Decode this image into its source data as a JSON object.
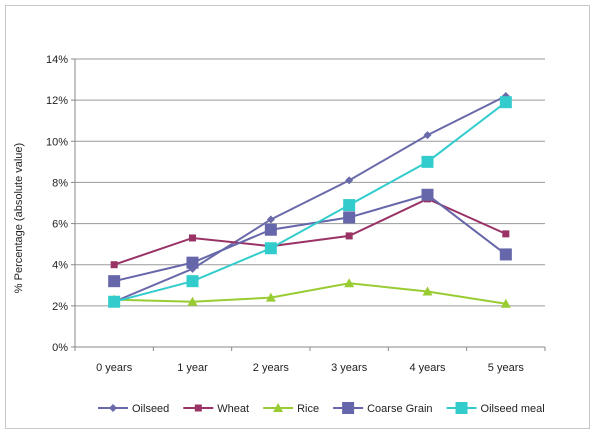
{
  "chart_data": {
    "type": "line",
    "title": "",
    "xlabel": "",
    "ylabel": "% Percentage (absolute value)",
    "categories": [
      "0 years",
      "1 year",
      "2 years",
      "3 years",
      "4 years",
      "5 years"
    ],
    "ylim": [
      0,
      14
    ],
    "yticks": [
      0,
      2,
      4,
      6,
      8,
      10,
      12,
      14
    ],
    "ytick_labels": [
      "0%",
      "2%",
      "4%",
      "6%",
      "8%",
      "10%",
      "12%",
      "14%"
    ],
    "grid": "horizontal",
    "legend_position": "bottom",
    "series": [
      {
        "name": "Oilseed",
        "color": "#6a6aaa",
        "marker": "diamond",
        "values": [
          2.2,
          3.8,
          6.2,
          8.1,
          10.3,
          12.2
        ]
      },
      {
        "name": "Wheat",
        "color": "#993366",
        "marker": "square",
        "values": [
          4.0,
          5.3,
          4.9,
          5.4,
          7.2,
          5.5
        ]
      },
      {
        "name": "Rice",
        "color": "#99cc33",
        "marker": "triangle",
        "values": [
          2.3,
          2.2,
          2.4,
          3.1,
          2.7,
          2.1
        ]
      },
      {
        "name": "Coarse Grain",
        "color": "#6666aa",
        "marker": "square-large",
        "values": [
          3.2,
          4.1,
          5.7,
          6.3,
          7.4,
          4.5
        ]
      },
      {
        "name": "Oilseed meal",
        "color": "#33cccc",
        "marker": "square-large",
        "values": [
          2.2,
          3.2,
          4.8,
          6.9,
          9.0,
          11.9
        ]
      }
    ]
  }
}
